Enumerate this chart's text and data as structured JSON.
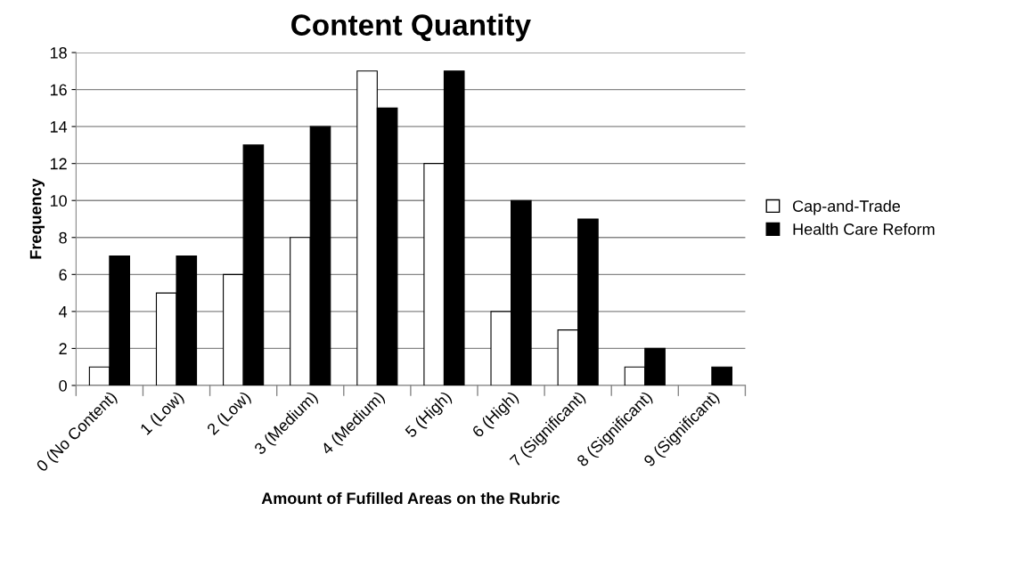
{
  "chart_data": {
    "type": "bar",
    "title": "Content Quantity",
    "xlabel": "Amount of Fufilled Areas on the Rubric",
    "ylabel": "Frequency",
    "categories": [
      "0 (No Content)",
      "1 (Low)",
      "2 (Low)",
      "3 (Medium)",
      "4 (Medium)",
      "5 (High)",
      "6 (High)",
      "7 (Significant)",
      "8 (Significant)",
      "9 (Significant)"
    ],
    "series": [
      {
        "name": "Cap-and-Trade",
        "color": "#ffffff",
        "values": [
          1,
          5,
          6,
          8,
          17,
          12,
          4,
          3,
          1,
          null
        ]
      },
      {
        "name": "Health Care Reform",
        "color": "#000000",
        "values": [
          7,
          7,
          13,
          14,
          15,
          17,
          10,
          9,
          2,
          1
        ]
      }
    ],
    "ylim": [
      0,
      18
    ],
    "yticks": [
      0,
      2,
      4,
      6,
      8,
      10,
      12,
      14,
      16,
      18
    ],
    "grid": "y",
    "legend": "right"
  }
}
